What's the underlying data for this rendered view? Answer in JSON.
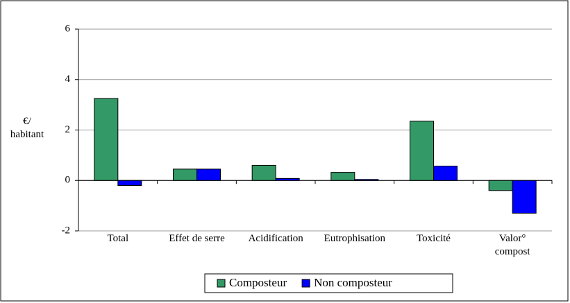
{
  "chart_data": {
    "type": "bar",
    "y_label": "€/ habitant",
    "categories": [
      "Total",
      "Effet de serre",
      "Acidification",
      "Eutrophisation",
      "Toxicité",
      "Valor° compost"
    ],
    "series": [
      {
        "name": "Composteur",
        "color": "#339966",
        "values": [
          3.25,
          0.45,
          0.6,
          0.32,
          2.35,
          -0.4
        ]
      },
      {
        "name": "Non composteur",
        "color": "#0000ff",
        "values": [
          -0.2,
          0.45,
          0.08,
          0.04,
          0.57,
          -1.3
        ]
      }
    ],
    "ylim": [
      -2,
      6
    ],
    "yticks": [
      -2,
      0,
      2,
      4,
      6
    ],
    "grid": true,
    "legend": "bottom"
  }
}
